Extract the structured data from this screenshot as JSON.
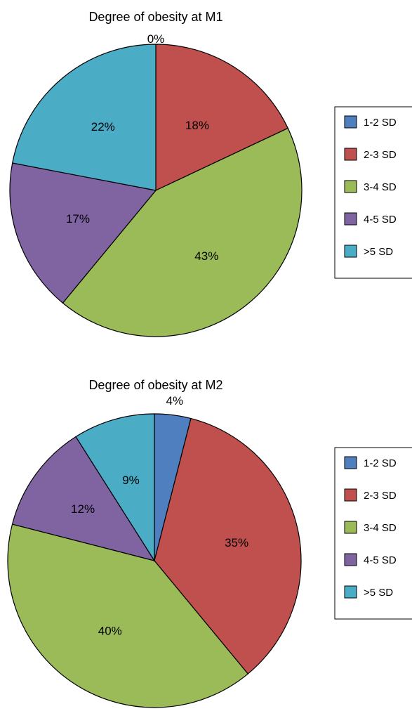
{
  "chart_data": [
    {
      "type": "pie",
      "title": "Degree of obesity at M1",
      "categories": [
        "1-2 SD",
        "2-3 SD",
        "3-4 SD",
        "4-5 SD",
        ">5 SD"
      ],
      "values": [
        0,
        18,
        43,
        17,
        22
      ],
      "labels": [
        "0%",
        "18%",
        "43%",
        "17%",
        "22%"
      ],
      "colors": [
        "#4f7fbf",
        "#c0504d",
        "#9bbb59",
        "#8064a2",
        "#4bacc6"
      ],
      "legend": "right",
      "start_angle": "top, clockwise"
    },
    {
      "type": "pie",
      "title": "Degree of obesity at M2",
      "categories": [
        "1-2 SD",
        "2-3 SD",
        "3-4 SD",
        "4-5 SD",
        ">5 SD"
      ],
      "values": [
        4,
        35,
        40,
        12,
        9
      ],
      "labels": [
        "4%",
        "35%",
        "40%",
        "12%",
        "9%"
      ],
      "colors": [
        "#4f7fbf",
        "#c0504d",
        "#9bbb59",
        "#8064a2",
        "#4bacc6"
      ],
      "legend": "right",
      "start_angle": "top, clockwise"
    }
  ]
}
